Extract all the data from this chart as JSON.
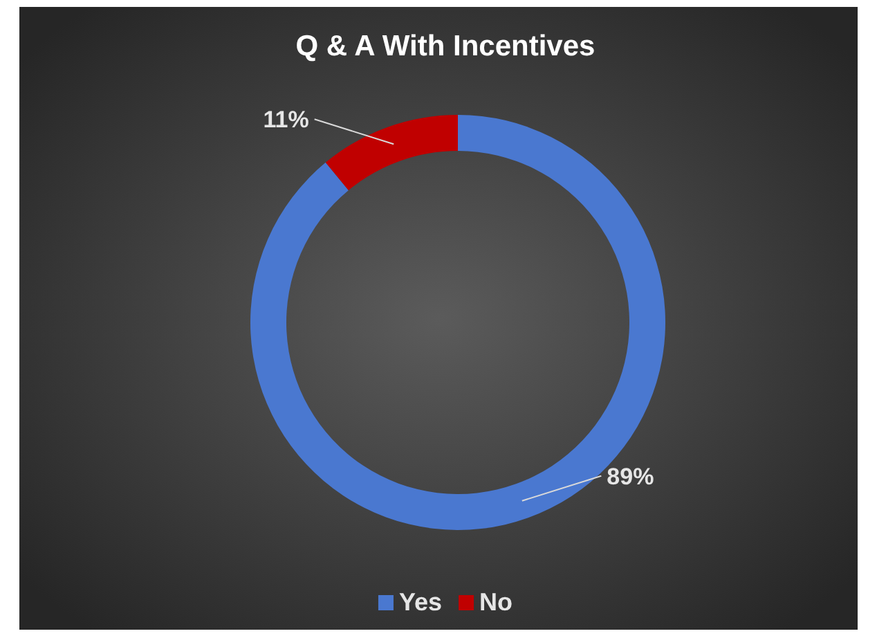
{
  "chart_data": {
    "type": "donut",
    "title": "Q & A With Incentives",
    "categories": [
      "Yes",
      "No"
    ],
    "values": [
      89,
      11
    ],
    "colors": [
      "#4a78d0",
      "#c00000"
    ],
    "value_labels": [
      "89%",
      "11%"
    ],
    "legend": "bottom"
  }
}
